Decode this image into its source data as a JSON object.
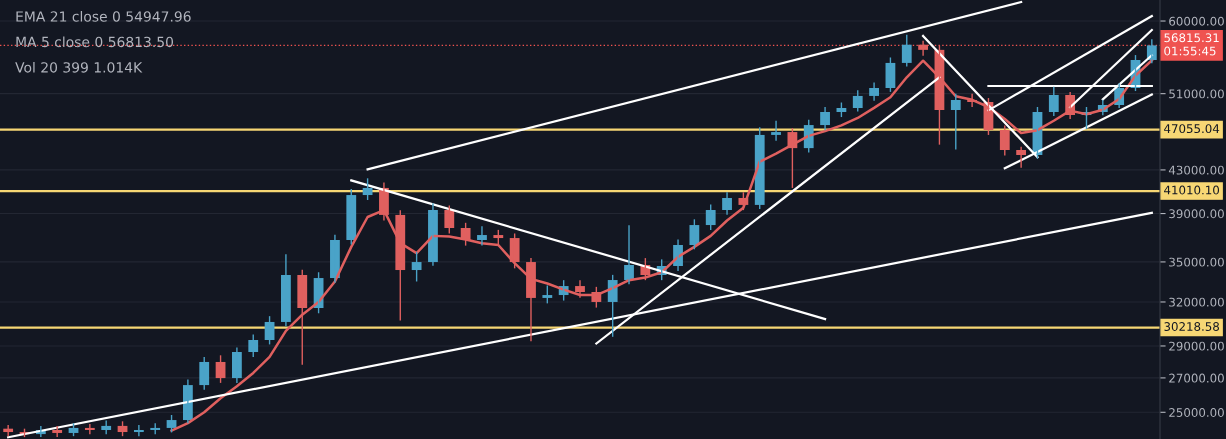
{
  "chart_data": {
    "type": "candlestick",
    "log": true,
    "grid": "y",
    "tick_labels": "y",
    "legend": false,
    "categories": [
      null,
      null,
      null,
      null,
      null,
      null,
      null,
      null,
      null,
      null,
      null,
      null,
      null,
      null,
      null,
      null,
      null,
      null,
      null,
      null,
      null,
      null,
      null,
      null,
      null,
      null,
      null,
      null,
      null,
      null,
      null,
      null,
      null,
      null,
      null,
      null,
      null,
      null,
      null,
      null,
      null,
      null,
      null,
      null,
      null,
      null,
      null,
      null,
      null,
      null,
      null,
      null,
      null,
      null,
      null,
      null,
      null,
      null,
      null,
      null,
      null,
      null,
      null,
      null,
      null,
      null,
      null,
      null,
      null,
      null,
      null
    ],
    "ylim": [
      23550,
      62890
    ],
    "yticks": [
      {
        "value": 25000,
        "label": "25000.00"
      },
      {
        "value": 27000,
        "label": "27000.00"
      },
      {
        "value": 29000,
        "label": "29000.00"
      },
      {
        "value": 32000,
        "label": "32000.00"
      },
      {
        "value": 35000,
        "label": "35000.00"
      },
      {
        "value": 39000,
        "label": "39000.00"
      },
      {
        "value": 43000,
        "label": "43000.00"
      },
      {
        "value": 51000,
        "label": "51000.00"
      },
      {
        "value": 60000,
        "label": "60000.00"
      }
    ],
    "colors": [
      "#e0605f",
      "#e0605f",
      "#4aa3c8",
      "#e0605f",
      "#4aa3c8",
      "#e0605f",
      "#4aa3c8",
      "#e0605f",
      "#4aa3c8",
      "#4aa3c8",
      "#4aa3c8",
      "#4aa3c8",
      "#4aa3c8",
      "#e0605f",
      "#4aa3c8",
      "#4aa3c8",
      "#4aa3c8",
      "#4aa3c8",
      "#e0605f",
      "#4aa3c8",
      "#4aa3c8",
      "#4aa3c8",
      "#4aa3c8",
      "#e0605f",
      "#e0605f",
      "#4aa3c8",
      "#4aa3c8",
      "#e0605f",
      "#e0605f",
      "#4aa3c8",
      "#e0605f",
      "#e0605f",
      "#e0605f",
      "#4aa3c8",
      "#4aa3c8",
      "#e0605f",
      "#e0605f",
      "#4aa3c8",
      "#4aa3c8",
      "#e0605f",
      "#4aa3c8",
      "#4aa3c8",
      "#4aa3c8",
      "#4aa3c8",
      "#4aa3c8",
      "#e0605f",
      "#4aa3c8",
      "#4aa3c8",
      "#e0605f",
      "#4aa3c8",
      "#4aa3c8",
      "#4aa3c8",
      "#4aa3c8",
      "#4aa3c8",
      "#4aa3c8",
      "#4aa3c8",
      "#e0605f",
      "#e0605f",
      "#4aa3c8",
      "#e0605f",
      "#e0605f",
      "#e0605f",
      "#e0605f",
      "#4aa3c8",
      "#4aa3c8",
      "#e0605f",
      "#4aa3c8",
      "#4aa3c8",
      "#4aa3c8",
      "#4aa3c8",
      "#4aa3c8"
    ],
    "ohlc": [
      [
        24100,
        24300,
        23700,
        23920
      ],
      [
        23920,
        24100,
        23650,
        23810
      ],
      [
        23810,
        24250,
        23650,
        24030
      ],
      [
        24030,
        24250,
        23650,
        23870
      ],
      [
        23870,
        24400,
        23700,
        24140
      ],
      [
        24140,
        24350,
        23800,
        24030
      ],
      [
        24030,
        24550,
        23800,
        24250
      ],
      [
        24250,
        24500,
        23700,
        23920
      ],
      [
        23920,
        24300,
        23700,
        24030
      ],
      [
        24030,
        24400,
        23800,
        24140
      ],
      [
        24140,
        24850,
        23900,
        24570
      ],
      [
        24570,
        26900,
        24400,
        26570
      ],
      [
        26570,
        28300,
        26300,
        27980
      ],
      [
        27980,
        28400,
        26700,
        26990
      ],
      [
        26990,
        28900,
        26700,
        28610
      ],
      [
        28610,
        29750,
        28300,
        29390
      ],
      [
        29390,
        31000,
        29100,
        30600
      ],
      [
        30600,
        35600,
        30300,
        33990
      ],
      [
        33990,
        34400,
        27800,
        31570
      ],
      [
        31570,
        34200,
        31200,
        33760
      ],
      [
        33760,
        37200,
        33400,
        36760
      ],
      [
        36760,
        41200,
        36400,
        40650
      ],
      [
        40650,
        42200,
        40200,
        41300
      ],
      [
        41300,
        41800,
        38400,
        38880
      ],
      [
        38880,
        39300,
        30700,
        34370
      ],
      [
        34370,
        35800,
        33500,
        34990
      ],
      [
        34990,
        39900,
        34700,
        39310
      ],
      [
        39310,
        39700,
        37300,
        37760
      ],
      [
        37760,
        38200,
        36300,
        36760
      ],
      [
        36760,
        37900,
        36300,
        37170
      ],
      [
        37170,
        37600,
        36400,
        36920
      ],
      [
        36920,
        37300,
        34500,
        34990
      ],
      [
        34990,
        35300,
        29300,
        32290
      ],
      [
        32290,
        33200,
        31900,
        32500
      ],
      [
        32500,
        33600,
        32100,
        33160
      ],
      [
        33160,
        33600,
        32300,
        32720
      ],
      [
        32720,
        33100,
        31600,
        32000
      ],
      [
        32000,
        34000,
        29600,
        33610
      ],
      [
        33610,
        38000,
        33300,
        34760
      ],
      [
        34760,
        35300,
        33600,
        33990
      ],
      [
        33990,
        35200,
        33600,
        34680
      ],
      [
        34680,
        36800,
        34300,
        36350
      ],
      [
        36350,
        38500,
        36000,
        38010
      ],
      [
        38010,
        39800,
        37600,
        39310
      ],
      [
        39310,
        40900,
        38900,
        40380
      ],
      [
        40380,
        40900,
        39300,
        39760
      ],
      [
        39760,
        47300,
        39400,
        46500
      ],
      [
        46500,
        48000,
        45900,
        46800
      ],
      [
        46800,
        47200,
        41300,
        45150
      ],
      [
        45150,
        48100,
        44700,
        47540
      ],
      [
        47540,
        49500,
        47000,
        48950
      ],
      [
        48950,
        50000,
        48400,
        49390
      ],
      [
        49390,
        51400,
        49000,
        50740
      ],
      [
        50740,
        52300,
        50200,
        51650
      ],
      [
        51650,
        55300,
        51200,
        54630
      ],
      [
        54630,
        58200,
        54200,
        56900
      ],
      [
        56900,
        57400,
        55500,
        56250
      ],
      [
        56250,
        56800,
        45500,
        49170
      ],
      [
        49170,
        51000,
        45000,
        50280
      ],
      [
        50280,
        51000,
        49500,
        50060
      ],
      [
        50060,
        50500,
        46500,
        47020
      ],
      [
        47020,
        47500,
        44400,
        44960
      ],
      [
        44960,
        45300,
        43200,
        44460
      ],
      [
        44460,
        49500,
        44100,
        48950
      ],
      [
        48950,
        51800,
        48500,
        50850
      ],
      [
        50850,
        51200,
        48200,
        48620
      ],
      [
        48620,
        49500,
        47100,
        48950
      ],
      [
        48950,
        50300,
        48600,
        49720
      ],
      [
        49720,
        52200,
        49400,
        51650
      ],
      [
        51650,
        55600,
        51300,
        54990
      ],
      [
        54990,
        57600,
        54600,
        56815.31
      ]
    ],
    "series": [
      {
        "type": "line",
        "color": "#e0605f",
        "values": [
          null,
          null,
          null,
          null,
          null,
          null,
          null,
          null,
          null,
          null,
          24000,
          24400,
          25000,
          25800,
          26500,
          27300,
          28300,
          30000,
          31100,
          32000,
          33500,
          36200,
          38700,
          39300,
          36500,
          35700,
          37100,
          37050,
          36800,
          36500,
          36350,
          34900,
          33700,
          33350,
          32900,
          32500,
          32500,
          33000,
          33600,
          33800,
          34200,
          35400,
          36200,
          37100,
          38400,
          39500,
          43800,
          44600,
          45500,
          46400,
          46900,
          47500,
          48300,
          49400,
          50600,
          52900,
          54900,
          52900,
          50700,
          50300,
          49500,
          48200,
          46700,
          47000,
          48000,
          49100,
          48700,
          49200,
          50400,
          53100,
          54947.96
        ]
      },
      {
        "type": "line",
        "color": "#ffffff",
        "values": [
          23640,
          null,
          null,
          null,
          null,
          null,
          null,
          null,
          null,
          null,
          null,
          null,
          null,
          null,
          null,
          null,
          null,
          null,
          null,
          null,
          null,
          null,
          null,
          null,
          null,
          null,
          null,
          null,
          null,
          null,
          null,
          null,
          null,
          null,
          null,
          null,
          null,
          null,
          null,
          null,
          null,
          null,
          null,
          null,
          null,
          null,
          null,
          null,
          null,
          null,
          null,
          null,
          null,
          null,
          null,
          null,
          null,
          null,
          null,
          null,
          null,
          null,
          null,
          null,
          null,
          null,
          null,
          null,
          null,
          null,
          39070
        ]
      },
      {
        "type": "line",
        "color": "#ffffff",
        "values": [
          null,
          null,
          null,
          null,
          null,
          null,
          null,
          null,
          null,
          null,
          null,
          null,
          null,
          null,
          null,
          null,
          null,
          null,
          null,
          null,
          null,
          null,
          43050,
          null,
          null,
          null,
          null,
          null,
          null,
          null,
          null,
          null,
          null,
          null,
          null,
          null,
          null,
          null,
          null,
          null,
          null,
          null,
          null,
          null,
          null,
          null,
          null,
          null,
          null,
          null,
          null,
          null,
          null,
          null,
          null,
          null,
          null,
          null,
          null,
          null,
          null,
          null,
          62600,
          null,
          null,
          null,
          null,
          null,
          null,
          null,
          null
        ]
      },
      {
        "type": "line",
        "color": "#ffffff",
        "values": [
          null,
          null,
          null,
          null,
          null,
          null,
          null,
          null,
          null,
          null,
          null,
          null,
          null,
          null,
          null,
          null,
          null,
          null,
          null,
          null,
          null,
          42000,
          null,
          null,
          null,
          null,
          null,
          null,
          null,
          null,
          null,
          null,
          null,
          null,
          null,
          null,
          null,
          null,
          null,
          null,
          null,
          null,
          null,
          null,
          null,
          null,
          null,
          null,
          null,
          null,
          30800,
          null,
          null,
          null,
          null,
          null,
          null,
          null,
          null,
          null,
          null,
          null,
          null,
          null,
          null,
          null,
          null,
          null,
          null,
          null,
          null
        ]
      },
      {
        "type": "line",
        "color": "#ffffff",
        "values": [
          null,
          null,
          null,
          null,
          null,
          null,
          null,
          null,
          null,
          null,
          null,
          null,
          null,
          null,
          null,
          null,
          null,
          null,
          null,
          null,
          null,
          null,
          null,
          null,
          null,
          null,
          null,
          null,
          null,
          null,
          null,
          null,
          null,
          null,
          null,
          null,
          29160,
          null,
          null,
          null,
          null,
          null,
          null,
          null,
          null,
          null,
          null,
          null,
          null,
          null,
          null,
          null,
          null,
          null,
          null,
          null,
          null,
          52890,
          null,
          null,
          null,
          null,
          null,
          null,
          null,
          null,
          null,
          null,
          null,
          null,
          null
        ]
      },
      {
        "type": "line",
        "color": "#ffffff",
        "values": [
          null,
          null,
          null,
          null,
          null,
          null,
          null,
          null,
          null,
          null,
          null,
          null,
          null,
          null,
          null,
          null,
          null,
          null,
          null,
          null,
          null,
          null,
          null,
          null,
          null,
          null,
          null,
          null,
          null,
          null,
          null,
          null,
          null,
          null,
          null,
          null,
          null,
          null,
          null,
          null,
          null,
          null,
          null,
          null,
          null,
          null,
          null,
          null,
          null,
          null,
          null,
          null,
          null,
          null,
          null,
          null,
          58030,
          null,
          null,
          null,
          null,
          null,
          null,
          44240,
          null,
          null,
          null,
          null,
          null,
          null,
          null
        ]
      },
      {
        "type": "line",
        "color": "#ffffff",
        "values": [
          null,
          null,
          null,
          null,
          null,
          null,
          null,
          null,
          null,
          null,
          null,
          null,
          null,
          null,
          null,
          null,
          null,
          null,
          null,
          null,
          null,
          null,
          null,
          null,
          null,
          null,
          null,
          null,
          null,
          null,
          null,
          null,
          null,
          null,
          null,
          null,
          null,
          null,
          null,
          null,
          null,
          null,
          null,
          null,
          null,
          null,
          null,
          null,
          null,
          null,
          null,
          null,
          null,
          null,
          null,
          null,
          null,
          null,
          null,
          null,
          null,
          43150,
          null,
          null,
          null,
          null,
          null,
          null,
          null,
          null,
          50900
        ]
      },
      {
        "type": "line",
        "color": "#ffffff",
        "values": [
          null,
          null,
          null,
          null,
          null,
          null,
          null,
          null,
          null,
          null,
          null,
          null,
          null,
          null,
          null,
          null,
          null,
          null,
          null,
          null,
          null,
          null,
          null,
          null,
          null,
          null,
          null,
          null,
          null,
          null,
          null,
          null,
          null,
          null,
          null,
          null,
          null,
          null,
          null,
          null,
          null,
          null,
          null,
          null,
          null,
          null,
          null,
          null,
          null,
          null,
          null,
          null,
          null,
          null,
          null,
          null,
          null,
          null,
          null,
          null,
          49130,
          null,
          null,
          null,
          null,
          null,
          null,
          null,
          null,
          null,
          60660
        ]
      },
      {
        "type": "line",
        "color": "#ffffff",
        "values": [
          null,
          null,
          null,
          null,
          null,
          null,
          null,
          null,
          null,
          null,
          null,
          null,
          null,
          null,
          null,
          null,
          null,
          null,
          null,
          null,
          null,
          null,
          null,
          null,
          null,
          null,
          null,
          null,
          null,
          null,
          null,
          null,
          null,
          null,
          null,
          null,
          null,
          null,
          null,
          null,
          null,
          null,
          null,
          null,
          null,
          null,
          null,
          null,
          null,
          null,
          null,
          null,
          null,
          null,
          null,
          null,
          null,
          null,
          null,
          null,
          51880,
          null,
          null,
          null,
          null,
          null,
          null,
          null,
          null,
          null,
          51880
        ]
      },
      {
        "type": "line",
        "color": "#ffffff",
        "values": [
          null,
          null,
          null,
          null,
          null,
          null,
          null,
          null,
          null,
          null,
          null,
          null,
          null,
          null,
          null,
          null,
          null,
          null,
          null,
          null,
          null,
          null,
          null,
          null,
          null,
          null,
          null,
          null,
          null,
          null,
          null,
          null,
          null,
          null,
          null,
          null,
          null,
          null,
          null,
          null,
          null,
          null,
          null,
          null,
          null,
          null,
          null,
          null,
          null,
          null,
          null,
          null,
          null,
          null,
          null,
          null,
          null,
          null,
          null,
          null,
          null,
          null,
          null,
          null,
          null,
          49470,
          null,
          null,
          null,
          null,
          58800
        ]
      },
      {
        "type": "line",
        "color": "#ffffff",
        "values": [
          null,
          null,
          null,
          null,
          null,
          null,
          null,
          null,
          null,
          null,
          null,
          null,
          null,
          null,
          null,
          null,
          null,
          null,
          null,
          null,
          null,
          null,
          null,
          null,
          null,
          null,
          null,
          null,
          null,
          null,
          null,
          null,
          null,
          null,
          null,
          null,
          null,
          null,
          null,
          null,
          null,
          null,
          null,
          null,
          null,
          null,
          null,
          null,
          null,
          null,
          null,
          null,
          null,
          null,
          null,
          null,
          null,
          null,
          null,
          null,
          null,
          null,
          null,
          null,
          null,
          null,
          null,
          50350,
          null,
          null,
          55580
        ]
      }
    ],
    "ref_lines": [
      {
        "axis": "y",
        "value": 47055.04,
        "label": "47055.04",
        "color": "#f7d774",
        "line_style": "solid"
      },
      {
        "axis": "y",
        "value": 41010.1,
        "label": "41010.10",
        "color": "#f7d774",
        "line_style": "solid"
      },
      {
        "axis": "y",
        "value": 30218.58,
        "label": "30218.58",
        "color": "#f7d774",
        "line_style": "solid"
      },
      {
        "axis": "y",
        "value": 56815.31,
        "label": "56815.31\n01:55:45",
        "color": "#ef5350",
        "line_style": "dotted"
      }
    ],
    "annotations": [
      "EMA 21 close 0 54947.96",
      "MA 5 close 0 56813.50",
      "Vol 20 399 1.014K"
    ]
  }
}
